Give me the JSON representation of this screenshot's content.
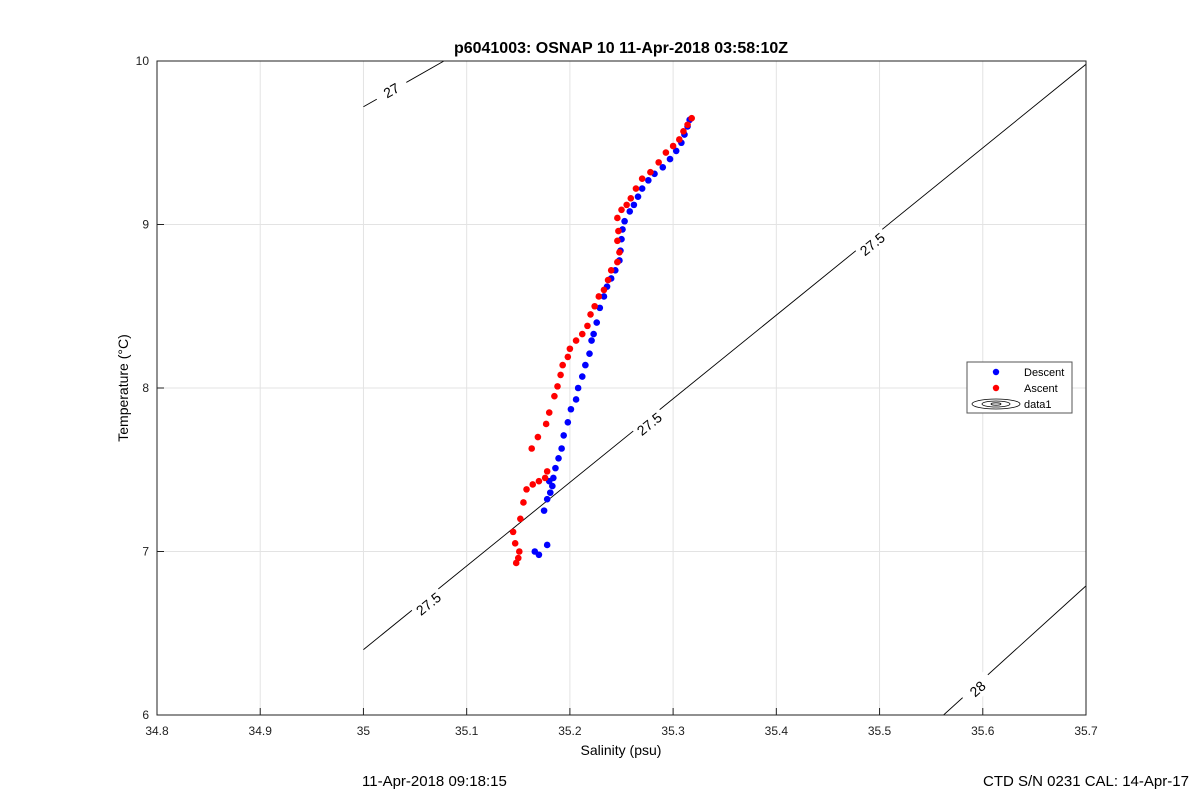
{
  "chart_data": {
    "type": "scatter",
    "title": "p6041003: OSNAP 10 11-Apr-2018 03:58:10Z",
    "xlabel": "Salinity (psu)",
    "ylabel": "Temperature (°C)",
    "xlim": [
      34.8,
      35.7
    ],
    "ylim": [
      6,
      10
    ],
    "xticks": [
      "34.8",
      "34.9",
      "35",
      "35.1",
      "35.2",
      "35.3",
      "35.4",
      "35.5",
      "35.6",
      "35.7"
    ],
    "yticks": [
      "6",
      "7",
      "8",
      "9",
      "10"
    ],
    "grid": true,
    "legend_position": "right",
    "legend": [
      "Descent",
      "Ascent",
      "data1"
    ],
    "contours": [
      {
        "level": "27",
        "points": [
          [
            35.0,
            9.72
          ],
          [
            35.078,
            10.0
          ]
        ],
        "label_at": [
          35.027,
          9.82
        ]
      },
      {
        "level": "27.5",
        "points": [
          [
            35.0,
            6.4
          ],
          [
            35.7,
            9.98
          ]
        ],
        "label_at": [
          [
            35.063,
            6.68
          ],
          [
            35.277,
            7.78
          ],
          [
            35.493,
            8.88
          ],
          [
            35.734,
            10.1
          ]
        ]
      },
      {
        "level": "28",
        "points": [
          [
            35.562,
            6.0
          ],
          [
            35.7,
            6.79
          ]
        ],
        "label_at": [
          35.595,
          6.16
        ]
      }
    ],
    "series": [
      {
        "name": "Descent",
        "color": "#0000ff",
        "points": [
          [
            35.166,
            7.0
          ],
          [
            35.17,
            6.98
          ],
          [
            35.178,
            7.04
          ],
          [
            35.175,
            7.25
          ],
          [
            35.178,
            7.32
          ],
          [
            35.181,
            7.36
          ],
          [
            35.183,
            7.4
          ],
          [
            35.18,
            7.43
          ],
          [
            35.184,
            7.45
          ],
          [
            35.186,
            7.51
          ],
          [
            35.189,
            7.57
          ],
          [
            35.192,
            7.63
          ],
          [
            35.194,
            7.71
          ],
          [
            35.198,
            7.79
          ],
          [
            35.201,
            7.87
          ],
          [
            35.206,
            7.93
          ],
          [
            35.208,
            8.0
          ],
          [
            35.212,
            8.07
          ],
          [
            35.215,
            8.14
          ],
          [
            35.219,
            8.21
          ],
          [
            35.221,
            8.29
          ],
          [
            35.223,
            8.33
          ],
          [
            35.226,
            8.4
          ],
          [
            35.229,
            8.49
          ],
          [
            35.233,
            8.56
          ],
          [
            35.236,
            8.62
          ],
          [
            35.24,
            8.67
          ],
          [
            35.244,
            8.72
          ],
          [
            35.248,
            8.78
          ],
          [
            35.249,
            8.84
          ],
          [
            35.25,
            8.91
          ],
          [
            35.251,
            8.97
          ],
          [
            35.253,
            9.02
          ],
          [
            35.258,
            9.08
          ],
          [
            35.262,
            9.12
          ],
          [
            35.266,
            9.17
          ],
          [
            35.27,
            9.22
          ],
          [
            35.276,
            9.27
          ],
          [
            35.282,
            9.31
          ],
          [
            35.29,
            9.35
          ],
          [
            35.297,
            9.4
          ],
          [
            35.303,
            9.45
          ],
          [
            35.308,
            9.5
          ],
          [
            35.311,
            9.55
          ],
          [
            35.314,
            9.6
          ],
          [
            35.316,
            9.64
          ]
        ]
      },
      {
        "name": "Ascent",
        "color": "#ff0000",
        "points": [
          [
            35.148,
            6.93
          ],
          [
            35.15,
            6.96
          ],
          [
            35.151,
            7.0
          ],
          [
            35.147,
            7.05
          ],
          [
            35.145,
            7.12
          ],
          [
            35.152,
            7.2
          ],
          [
            35.155,
            7.3
          ],
          [
            35.158,
            7.38
          ],
          [
            35.164,
            7.41
          ],
          [
            35.17,
            7.43
          ],
          [
            35.176,
            7.45
          ],
          [
            35.178,
            7.49
          ],
          [
            35.163,
            7.63
          ],
          [
            35.169,
            7.7
          ],
          [
            35.177,
            7.78
          ],
          [
            35.18,
            7.85
          ],
          [
            35.185,
            7.95
          ],
          [
            35.188,
            8.01
          ],
          [
            35.191,
            8.08
          ],
          [
            35.193,
            8.14
          ],
          [
            35.198,
            8.19
          ],
          [
            35.2,
            8.24
          ],
          [
            35.206,
            8.29
          ],
          [
            35.212,
            8.33
          ],
          [
            35.217,
            8.38
          ],
          [
            35.22,
            8.45
          ],
          [
            35.224,
            8.5
          ],
          [
            35.228,
            8.56
          ],
          [
            35.233,
            8.6
          ],
          [
            35.237,
            8.66
          ],
          [
            35.24,
            8.72
          ],
          [
            35.246,
            8.77
          ],
          [
            35.248,
            8.83
          ],
          [
            35.246,
            8.9
          ],
          [
            35.247,
            8.96
          ],
          [
            35.246,
            9.04
          ],
          [
            35.25,
            9.09
          ],
          [
            35.255,
            9.12
          ],
          [
            35.259,
            9.16
          ],
          [
            35.264,
            9.22
          ],
          [
            35.27,
            9.28
          ],
          [
            35.278,
            9.32
          ],
          [
            35.286,
            9.38
          ],
          [
            35.293,
            9.44
          ],
          [
            35.3,
            9.48
          ],
          [
            35.306,
            9.52
          ],
          [
            35.31,
            9.57
          ],
          [
            35.314,
            9.61
          ],
          [
            35.318,
            9.65
          ]
        ]
      }
    ]
  },
  "footer": {
    "timestamp": "11-Apr-2018 09:18:15",
    "ctd_info": "CTD S/N 0231  CAL: 14-Apr-17"
  }
}
